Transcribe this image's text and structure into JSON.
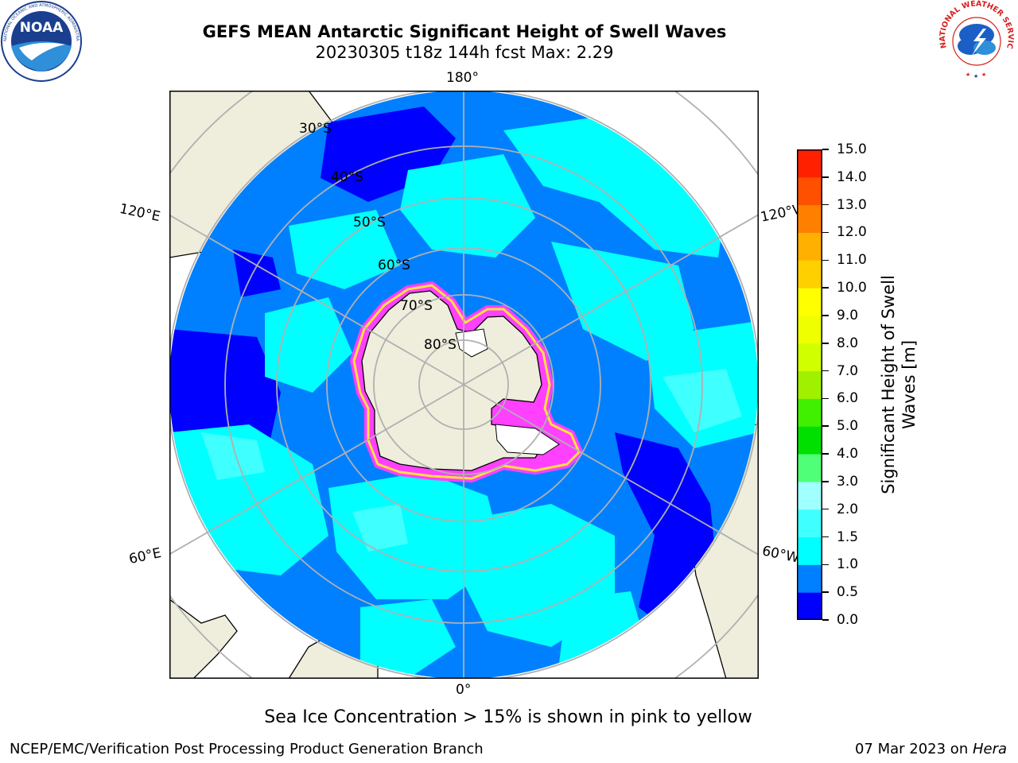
{
  "header": {
    "title_line1": "GEFS MEAN Antarctic Significant Height of Swell Waves",
    "title_line2": "20230305 t18z 144h fcst   Max: 2.29"
  },
  "logos": {
    "noaa_text": "NOAA",
    "noaa_ring_text": "NATIONAL OCEANIC AND ATMOSPHERIC ADMINISTRATION · U.S. DEPARTMENT OF COMMERCE",
    "nws_ring_text": "NATIONAL WEATHER SERVICE"
  },
  "map": {
    "projection": "south-polar-stereographic",
    "longitude_labels": [
      "180°",
      "120°E",
      "120°W",
      "60°E",
      "60°W",
      "0°"
    ],
    "latitude_labels": [
      "30°S",
      "40°S",
      "50°S",
      "60°S",
      "70°S",
      "80°S"
    ],
    "colors": {
      "land": "#efeedd",
      "ice_shelf": "#ffffff",
      "graticule": "#b0b0b0",
      "ice_edge_pink": "#ff40ff",
      "ice_edge_yellow": "#ffe040"
    }
  },
  "colorbar": {
    "label": "Significant Height of Swell Waves [m]",
    "label_line1": "Significant Height of Swell",
    "label_line2": "Waves [m]",
    "ticks": [
      "0.0",
      "0.5",
      "1.0",
      "1.5",
      "2.0",
      "3.0",
      "4.0",
      "5.0",
      "6.0",
      "7.0",
      "8.0",
      "9.0",
      "10.0",
      "11.0",
      "12.0",
      "13.0",
      "14.0",
      "15.0"
    ],
    "colors": [
      "#0000ff",
      "#0080ff",
      "#00ffff",
      "#40ffff",
      "#a0ffff",
      "#50ff78",
      "#00e000",
      "#40f000",
      "#a0f000",
      "#d0ff00",
      "#f0ff00",
      "#ffff00",
      "#ffd000",
      "#ffb000",
      "#ff8000",
      "#ff5000",
      "#ff2000"
    ]
  },
  "subtitle": "Sea Ice Concentration > 15% is shown in pink to yellow",
  "footer": {
    "left": "NCEP/EMC/Verification Post Processing Product Generation Branch",
    "right_date": "07 Mar 2023 on ",
    "right_host": "Hera"
  }
}
